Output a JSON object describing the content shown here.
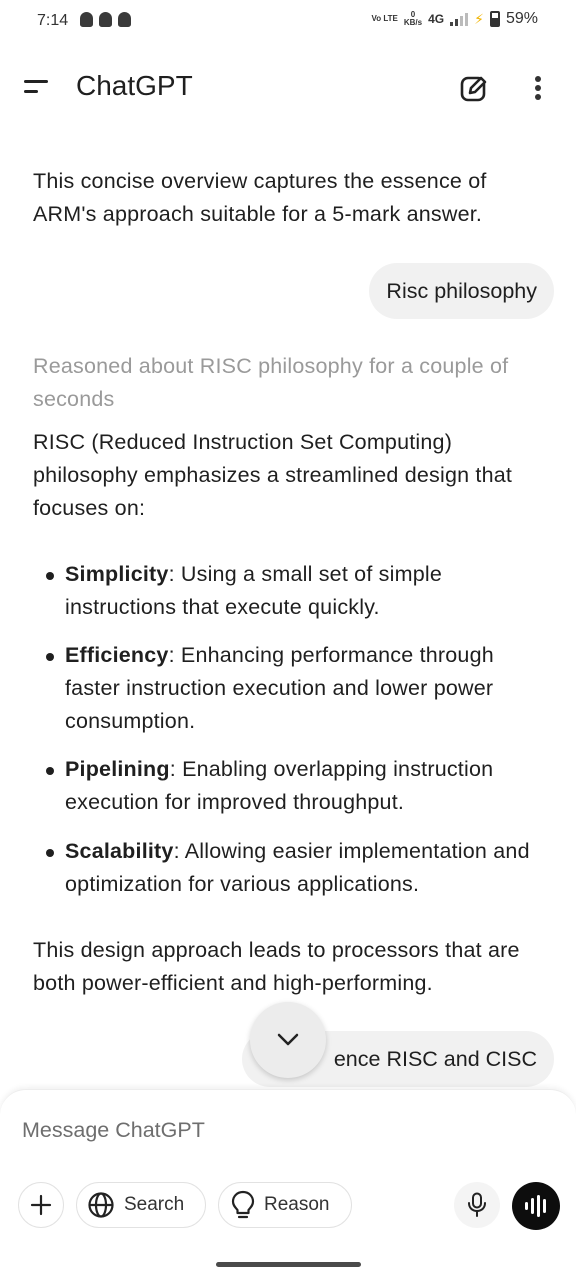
{
  "status_bar": {
    "time": "7:14",
    "network_type": "4G",
    "data_rate_value": "0",
    "data_rate_unit": "KB/s",
    "volte": "Vo LTE",
    "battery_percent": "59%"
  },
  "header": {
    "title": "ChatGPT"
  },
  "conversation": {
    "prev_answer_tail": "This concise overview captures the essence of ARM's approach suitable for a 5-mark answer.",
    "user_message_1": "Risc philosophy",
    "reasoning_note": "Reasoned about RISC philosophy for a couple of seconds",
    "answer_intro": "RISC (Reduced Instruction Set Computing) philosophy emphasizes a streamlined design that focuses on:",
    "bullets": [
      {
        "term": "Simplicity",
        "text": ": Using a small set of simple instructions that execute quickly."
      },
      {
        "term": "Efficiency",
        "text": ": Enhancing performance through faster instruction execution and lower power consumption."
      },
      {
        "term": "Pipelining",
        "text": ": Enabling overlapping instruction execution for improved throughput."
      },
      {
        "term": "Scalability",
        "text": ": Allowing easier implementation and optimization for various applications."
      }
    ],
    "answer_outro": "This design approach leads to processors that are both power-efficient and high-performing.",
    "user_message_2_visible": "ence RISC and CISC"
  },
  "composer": {
    "placeholder": "Message ChatGPT",
    "search_label": "Search",
    "reason_label": "Reason"
  }
}
